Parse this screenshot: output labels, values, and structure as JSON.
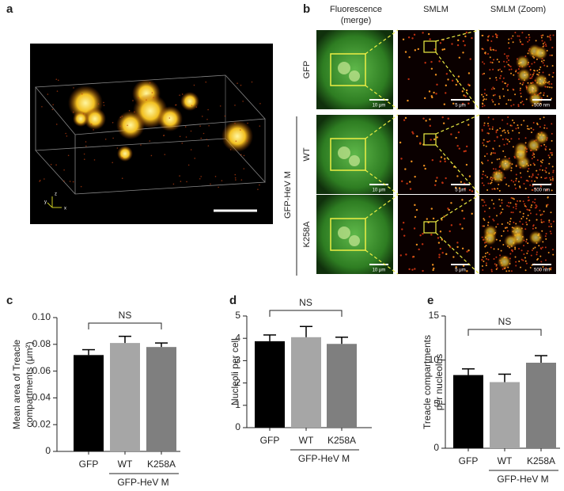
{
  "panel_a": {
    "label": "a",
    "axes": [
      "z",
      "y",
      "x"
    ]
  },
  "panel_b": {
    "label": "b",
    "columns": [
      "Fluorescence",
      "(merge)",
      "SMLM",
      "SMLM (Zoom)"
    ],
    "group": "GFP-HeV M",
    "rows": [
      {
        "label": "GFP",
        "scale_bars": [
          "10 μm",
          "5 μm",
          "500 nm"
        ]
      },
      {
        "label": "WT",
        "scale_bars": [
          "10 μm",
          "5 μm",
          "500 nm"
        ]
      },
      {
        "label": "K258A",
        "scale_bars": [
          "10 μm",
          "5 μm",
          "500 nm"
        ]
      }
    ]
  },
  "chart_data": [
    {
      "type": "bar",
      "panel": "c",
      "ylabel": [
        "Mean area of Treacle",
        "compartments (μm²)"
      ],
      "categories": [
        "GFP",
        "WT",
        "K258A"
      ],
      "group_label": "GFP-HeV M",
      "annotation": "NS",
      "values": [
        0.072,
        0.081,
        0.078
      ],
      "errors": [
        0.004,
        0.005,
        0.003
      ],
      "colors": [
        "#000000",
        "#a6a6a6",
        "#7f7f7f"
      ],
      "ylim": [
        0,
        0.1
      ],
      "yticks": [
        0,
        0.02,
        0.04,
        0.06,
        0.08,
        {
          "value": 0.1,
          "label": "0.10"
        }
      ]
    },
    {
      "type": "bar",
      "panel": "d",
      "ylabel": [
        "Nucleoli per cell"
      ],
      "categories": [
        "GFP",
        "WT",
        "K258A"
      ],
      "group_label": "GFP-HeV M",
      "annotation": "NS",
      "values": [
        3.87,
        4.05,
        3.75
      ],
      "errors": [
        0.28,
        0.48,
        0.3
      ],
      "colors": [
        "#000000",
        "#a6a6a6",
        "#7f7f7f"
      ],
      "ylim": [
        0,
        5
      ],
      "yticks": [
        0,
        1,
        2,
        3,
        4,
        5
      ]
    },
    {
      "type": "bar",
      "panel": "e",
      "ylabel": [
        "Treacle compartments",
        "per nucleolus"
      ],
      "categories": [
        "GFP",
        "WT",
        "K258A"
      ],
      "group_label": "GFP-HeV M",
      "annotation": "NS",
      "values": [
        8.3,
        7.5,
        9.7
      ],
      "errors": [
        0.7,
        0.9,
        0.8
      ],
      "colors": [
        "#000000",
        "#a6a6a6",
        "#7f7f7f"
      ],
      "ylim": [
        0,
        15
      ],
      "yticks": [
        0,
        5,
        10,
        15
      ]
    }
  ]
}
